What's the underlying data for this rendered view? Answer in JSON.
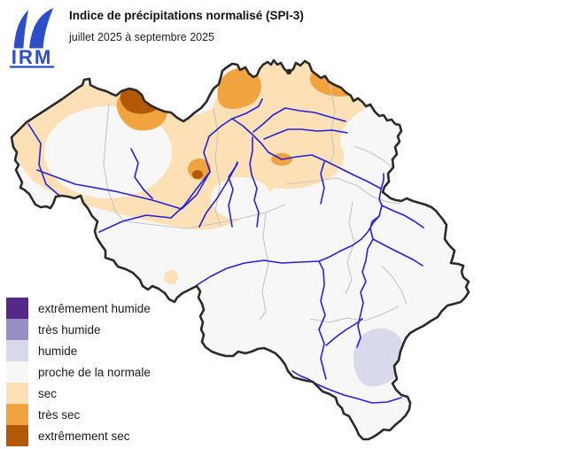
{
  "header": {
    "logo_text": "IRM",
    "title": "Indice de précipitations normalisé (SPI-3)",
    "subtitle": "juillet 2025 à septembre 2025"
  },
  "legend": {
    "items": [
      {
        "label": "extrêmement humide",
        "color": "#542788"
      },
      {
        "label": "très humide",
        "color": "#998EC3"
      },
      {
        "label": "humide",
        "color": "#D8DAEB"
      },
      {
        "label": "proche de la normale",
        "color": "#F7F7F7"
      },
      {
        "label": "sec",
        "color": "#FEE0B6"
      },
      {
        "label": "très sec",
        "color": "#F1A340"
      },
      {
        "label": "extrêmement sec",
        "color": "#B35806"
      }
    ]
  },
  "colors": {
    "river": "#2222DD",
    "country_border": "#2a2a2a",
    "province_border": "#c5c5c5",
    "logo_blue": "#2B4FC8",
    "background": "#FFFFFF"
  }
}
